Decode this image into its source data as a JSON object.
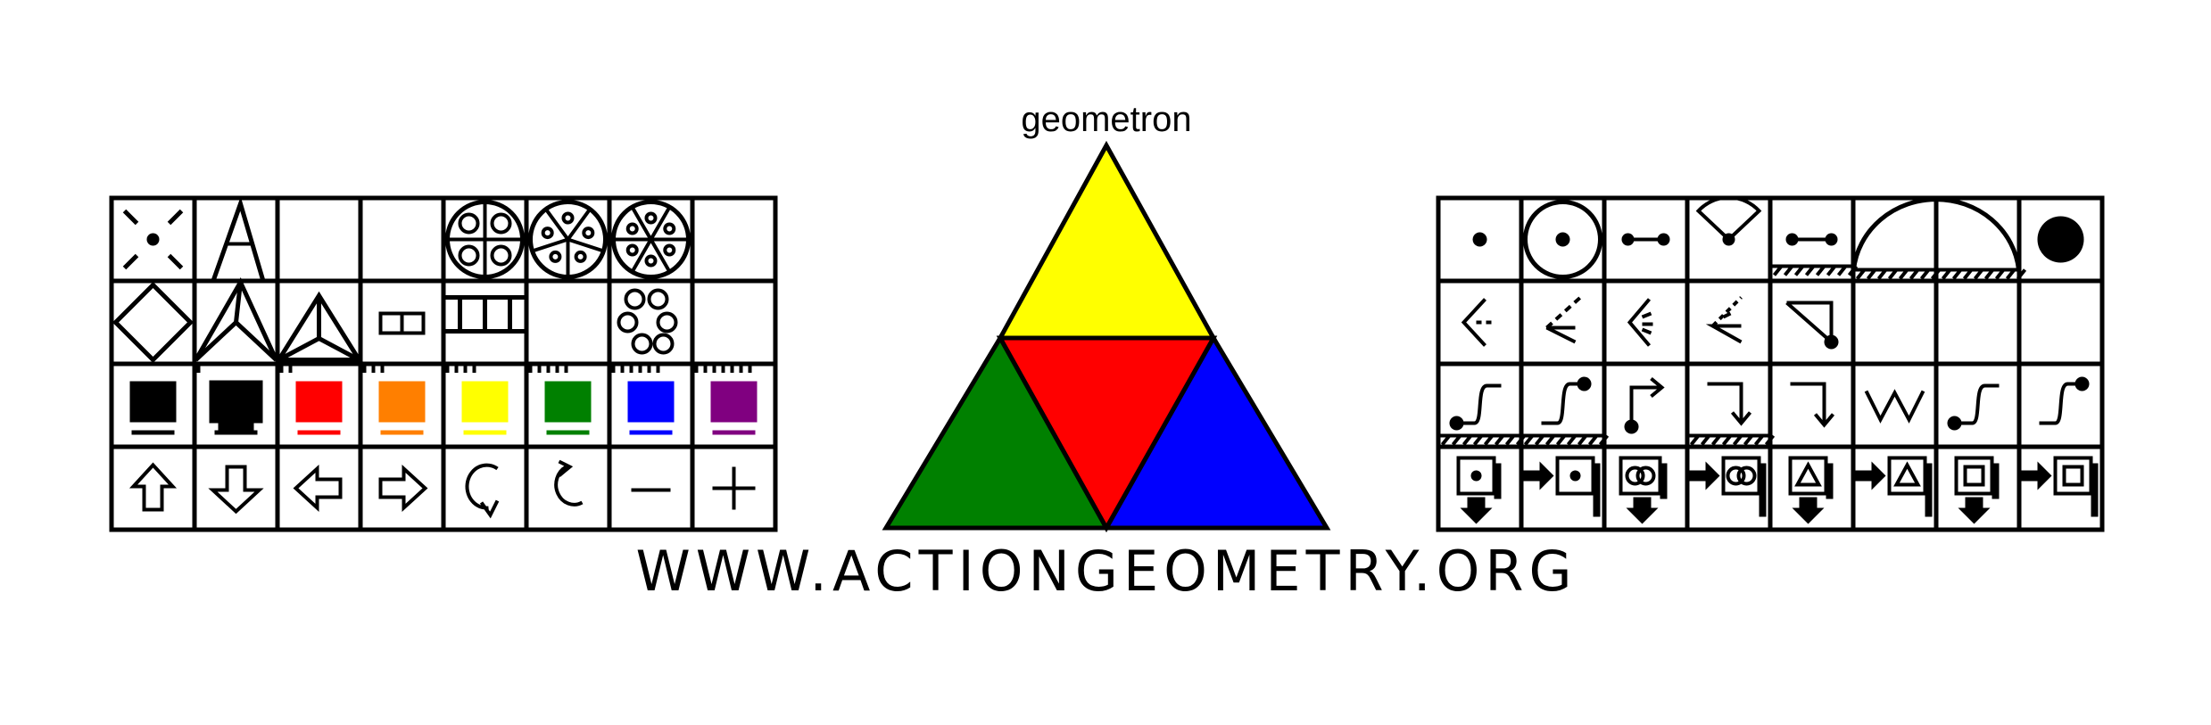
{
  "title": "geometron",
  "website": "WWW.ACTIONGEOMETRY.ORG",
  "triangle": {
    "top_color": "#ffff00",
    "center_color": "#ff0000",
    "left_color": "#008000",
    "right_color": "#0000ff"
  },
  "left_panel": {
    "rows": [
      [
        "dot-cross-icon",
        "tall-triangle-icon",
        "blank",
        "blank",
        "flower4-icon",
        "flower5-icon",
        "flower6-icon",
        "blank"
      ],
      [
        "diamond-icon",
        "kite-pyramid-icon",
        "pyramid-icon",
        "bar2-icon",
        "bar3-icon",
        "blank",
        "circles6-icon",
        "blank"
      ],
      [
        "swatch-black",
        "swatch-black-thick",
        "swatch-red",
        "swatch-orange",
        "swatch-yellow",
        "swatch-green",
        "swatch-blue",
        "swatch-purple"
      ],
      [
        "arrow-up-icon",
        "arrow-down-icon",
        "arrow-left-icon",
        "arrow-right-icon",
        "rotate-ccw-icon",
        "rotate-cw-icon",
        "minus-icon",
        "plus-icon"
      ]
    ],
    "swatch_colors": [
      "#000000",
      "#000000",
      "#ff0000",
      "#ff7f00",
      "#ffff00",
      "#008000",
      "#0000ff",
      "#800080"
    ]
  },
  "right_panel": {
    "rows": [
      [
        "point-icon",
        "circle-point-icon",
        "segment-icon",
        "arc-sector-icon",
        "ground-segment-icon",
        "semicircle-ground-icon",
        "semicircle-ground-icon",
        "filled-circle-icon"
      ],
      [
        "angle-icon",
        "angle-dash-icon",
        "angle-fan-icon",
        "angle-fan-dash-icon",
        "right-triangle-icon",
        "blank",
        "blank",
        "blank"
      ],
      [
        "curve-ground-icon",
        "curve-ground-2-icon",
        "turn-right-icon",
        "turn-down-ground-icon",
        "turn-down-icon",
        "zigzag-icon",
        "curve-icon",
        "curve-2-icon"
      ],
      [
        "square-dot-down-icon",
        "square-dot-right-icon",
        "circles-down-icon",
        "circles-right-icon",
        "triangle-down-icon",
        "triangle-right-icon",
        "square-down-icon",
        "square-right-icon"
      ]
    ]
  }
}
